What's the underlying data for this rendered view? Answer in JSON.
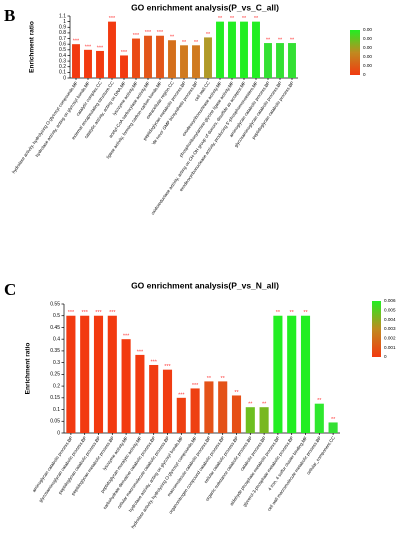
{
  "chart_data": [
    {
      "type": "bar",
      "panel_label": "B",
      "title": "GO enrichment analysis(P_vs_C_all)",
      "y_label": "Enrichment ratio",
      "categories": [
        "hydrolase activity, hydrolyzing O-glycosyl compounds.MF",
        "hydrolase activity, acting on glycosyl bonds.MF",
        "catalytic complex.CC",
        "external encapsulating structure.CC",
        "catalytic activity, acting on DNA.MF",
        "lysozyme activity.MF",
        "acetyl-CoA carboxylase activity.MF",
        "ligase activity, forming carbon-carbon bonds.MF",
        "extracellular region.CC",
        "peptidoglycan metabolic process.BP",
        "'de novo' GMP biosynthetic process.BP",
        "cell wall.CC",
        "exodeoxyribonuclease activity.MF",
        "phosphoribosylamine-glycine ligase activity.MF",
        "oxidoreductase activity, acting on CH-OH group of donors, disulfide as acceptor.MF",
        "exodeoxyribonuclease activity, producing 5'-phosphomonoesters.MF",
        "aminoglycan catabolic process.BP",
        "glycosaminoglycan catabolic process.BP",
        "peptidoglycan catabolic process.BP"
      ],
      "values": [
        0.6,
        0.5,
        0.48,
        1.0,
        0.4,
        0.7,
        0.75,
        0.75,
        0.67,
        0.58,
        0.58,
        0.72,
        1.0,
        1.0,
        1.0,
        1.0,
        0.62,
        0.62,
        0.62
      ],
      "significance": [
        "***",
        "***",
        "***",
        "***",
        "***",
        "***",
        "***",
        "***",
        "**",
        "**",
        "**",
        "**",
        "**",
        "**",
        "**",
        "**",
        "**",
        "**",
        "**"
      ],
      "colors": [
        "#f23a10",
        "#f23a10",
        "#f23a10",
        "#f23a10",
        "#f23a10",
        "#ea4a14",
        "#e2561a",
        "#e2561a",
        "#d4701c",
        "#d07a20",
        "#d07a20",
        "#b09a28",
        "#22ee22",
        "#22ee22",
        "#22ee22",
        "#22ee22",
        "#33e033",
        "#33e033",
        "#33e033"
      ],
      "ylim": [
        0,
        1.1
      ],
      "yticks": [
        0,
        0.1,
        0.2,
        0.3,
        0.4,
        0.5,
        0.6,
        0.7,
        0.8,
        0.9,
        1,
        1.1
      ],
      "colorbar_labels": [
        "0.00",
        "0.00",
        "0.00",
        "0.00",
        "0.00",
        "0"
      ]
    },
    {
      "type": "bar",
      "panel_label": "C",
      "title": "GO enrichment analysis(P_vs_N_all)",
      "y_label": "Enrichment ratio",
      "categories": [
        "aminoglycan catabolic process.BP",
        "glycosaminoglycan catabolic process.BP",
        "peptidoglycan catabolic process.BP",
        "peptidoglycan metabolic process.BP",
        "lysozyme activity.MF",
        "peptidoglycan muralytic activity.MF",
        "carbohydrate derivative catabolic process.BP",
        "cellular macromolecule catabolic process.BP",
        "hydrolase activity, acting on glycosyl bonds.MF",
        "hydrolase activity, hydrolyzing O-glycosyl compounds.MF",
        "macromolecule catabolic process.BP",
        "organonitrogen compound catabolic process.BP",
        "cellular catabolic process.BP",
        "organic substance catabolic process.BP",
        "catabolic process.BP",
        "aldehyde phosphate metabolic process.BP",
        "glycerol-3-phosphate metabolic process.BP",
        "4 iron, 4 sulfur cluster binding.MF",
        "cell wall macromolecule metabolic process.BP",
        "cellular_component.CC"
      ],
      "values": [
        0.5,
        0.5,
        0.5,
        0.5,
        0.4,
        0.333,
        0.29,
        0.27,
        0.15,
        0.19,
        0.22,
        0.22,
        0.16,
        0.11,
        0.11,
        0.5,
        0.5,
        0.5,
        0.125,
        0.045
      ],
      "significance": [
        "***",
        "***",
        "***",
        "***",
        "***",
        "***",
        "***",
        "***",
        "***",
        "***",
        "**",
        "**",
        "**",
        "**",
        "**",
        "**",
        "**",
        "**",
        "**",
        "**"
      ],
      "colors": [
        "#f23a10",
        "#f23a10",
        "#f23a10",
        "#f23a10",
        "#f23a10",
        "#f23a10",
        "#f03c12",
        "#f03c12",
        "#ee4012",
        "#ee4012",
        "#e45218",
        "#e45218",
        "#e65016",
        "#6cbf20",
        "#78b820",
        "#22ee22",
        "#22ee22",
        "#22ee22",
        "#2ee82e",
        "#33e033"
      ],
      "ylim": [
        0,
        0.55
      ],
      "yticks": [
        0,
        0.05,
        0.1,
        0.15,
        0.2,
        0.25,
        0.3,
        0.35,
        0.4,
        0.45,
        0.5,
        0.55
      ],
      "colorbar_labels": [
        "0.006",
        "0.005",
        "0.004",
        "0.003",
        "0.002",
        "0.001",
        "0"
      ]
    }
  ]
}
